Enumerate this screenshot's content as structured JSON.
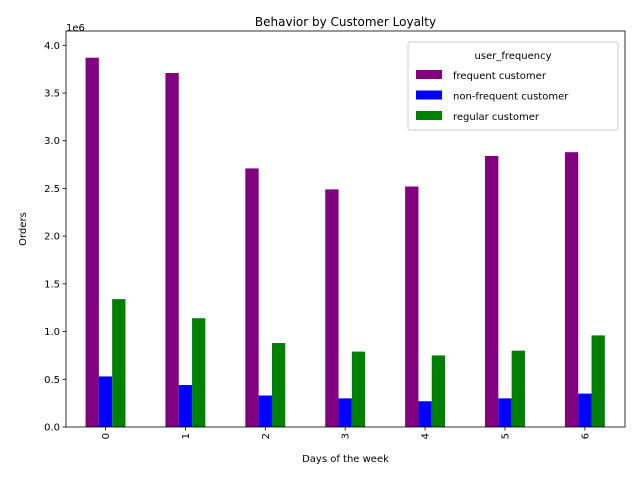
{
  "chart_data": {
    "type": "bar",
    "title": "Behavior by Customer Loyalty",
    "xlabel": "Days of the week",
    "ylabel": "Orders",
    "y_offset_label": "1e6",
    "categories": [
      "0",
      "1",
      "2",
      "3",
      "4",
      "5",
      "6"
    ],
    "ylim": [
      0,
      4150000
    ],
    "yticks": [
      0,
      500000,
      1000000,
      1500000,
      2000000,
      2500000,
      3000000,
      3500000,
      4000000
    ],
    "ytick_labels": [
      "0.0",
      "0.5",
      "1.0",
      "1.5",
      "2.0",
      "2.5",
      "3.0",
      "3.5",
      "4.0"
    ],
    "grid": false,
    "legend": {
      "title": "user_frequency",
      "placement": "top-right"
    },
    "series": [
      {
        "name": "frequent customer",
        "color": "#800080",
        "values": [
          3870000,
          3710000,
          2710000,
          2490000,
          2520000,
          2840000,
          2880000
        ]
      },
      {
        "name": "non-frequent customer",
        "color": "#0000ff",
        "values": [
          530000,
          440000,
          330000,
          300000,
          270000,
          300000,
          350000
        ]
      },
      {
        "name": "regular customer",
        "color": "#008000",
        "values": [
          1340000,
          1140000,
          880000,
          790000,
          750000,
          800000,
          960000
        ]
      }
    ]
  }
}
